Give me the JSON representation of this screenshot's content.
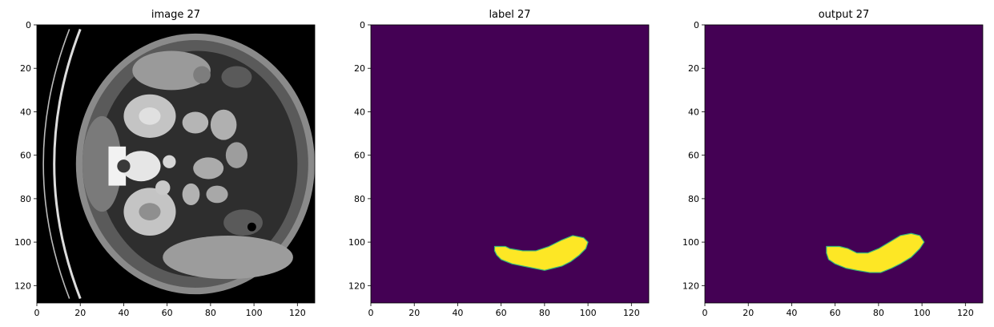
{
  "chart_data": [
    {
      "type": "heatmap",
      "title": "image 27",
      "content": "ct-slice",
      "colormap": "gray",
      "xlim": [
        0,
        128
      ],
      "ylim": [
        128,
        0
      ],
      "xticks": [
        0,
        20,
        40,
        60,
        80,
        100,
        120
      ],
      "yticks": [
        0,
        20,
        40,
        60,
        80,
        100,
        120
      ]
    },
    {
      "type": "heatmap",
      "title": "label 27",
      "content": "segmentation-mask",
      "colormap": "viridis",
      "background_color": "#440154",
      "mask_color": "#fde725",
      "mask_polygon": [
        [
          57,
          102
        ],
        [
          62,
          102
        ],
        [
          64,
          103
        ],
        [
          70,
          104
        ],
        [
          76,
          104
        ],
        [
          82,
          102
        ],
        [
          88,
          99
        ],
        [
          93,
          97
        ],
        [
          98,
          98
        ],
        [
          100,
          100
        ],
        [
          99,
          103
        ],
        [
          96,
          106
        ],
        [
          92,
          109
        ],
        [
          88,
          111
        ],
        [
          84,
          112
        ],
        [
          80,
          113
        ],
        [
          75,
          112
        ],
        [
          70,
          111
        ],
        [
          65,
          110
        ],
        [
          60,
          108
        ],
        [
          58,
          106
        ],
        [
          57,
          104
        ]
      ],
      "xlim": [
        0,
        128
      ],
      "ylim": [
        128,
        0
      ],
      "xticks": [
        0,
        20,
        40,
        60,
        80,
        100,
        120
      ],
      "yticks": [
        0,
        20,
        40,
        60,
        80,
        100,
        120
      ]
    },
    {
      "type": "heatmap",
      "title": "output 27",
      "content": "segmentation-mask",
      "colormap": "viridis",
      "background_color": "#440154",
      "mask_color": "#fde725",
      "mask_polygon": [
        [
          56,
          102
        ],
        [
          62,
          102
        ],
        [
          66,
          103
        ],
        [
          70,
          105
        ],
        [
          75,
          105
        ],
        [
          80,
          103
        ],
        [
          85,
          100
        ],
        [
          90,
          97
        ],
        [
          95,
          96
        ],
        [
          99,
          97
        ],
        [
          101,
          100
        ],
        [
          99,
          103
        ],
        [
          95,
          107
        ],
        [
          90,
          110
        ],
        [
          86,
          112
        ],
        [
          81,
          114
        ],
        [
          76,
          114
        ],
        [
          70,
          113
        ],
        [
          65,
          112
        ],
        [
          60,
          110
        ],
        [
          57,
          108
        ],
        [
          56,
          105
        ]
      ],
      "xlim": [
        0,
        128
      ],
      "ylim": [
        128,
        0
      ],
      "xticks": [
        0,
        20,
        40,
        60,
        80,
        100,
        120
      ],
      "yticks": [
        0,
        20,
        40,
        60,
        80,
        100,
        120
      ]
    }
  ]
}
